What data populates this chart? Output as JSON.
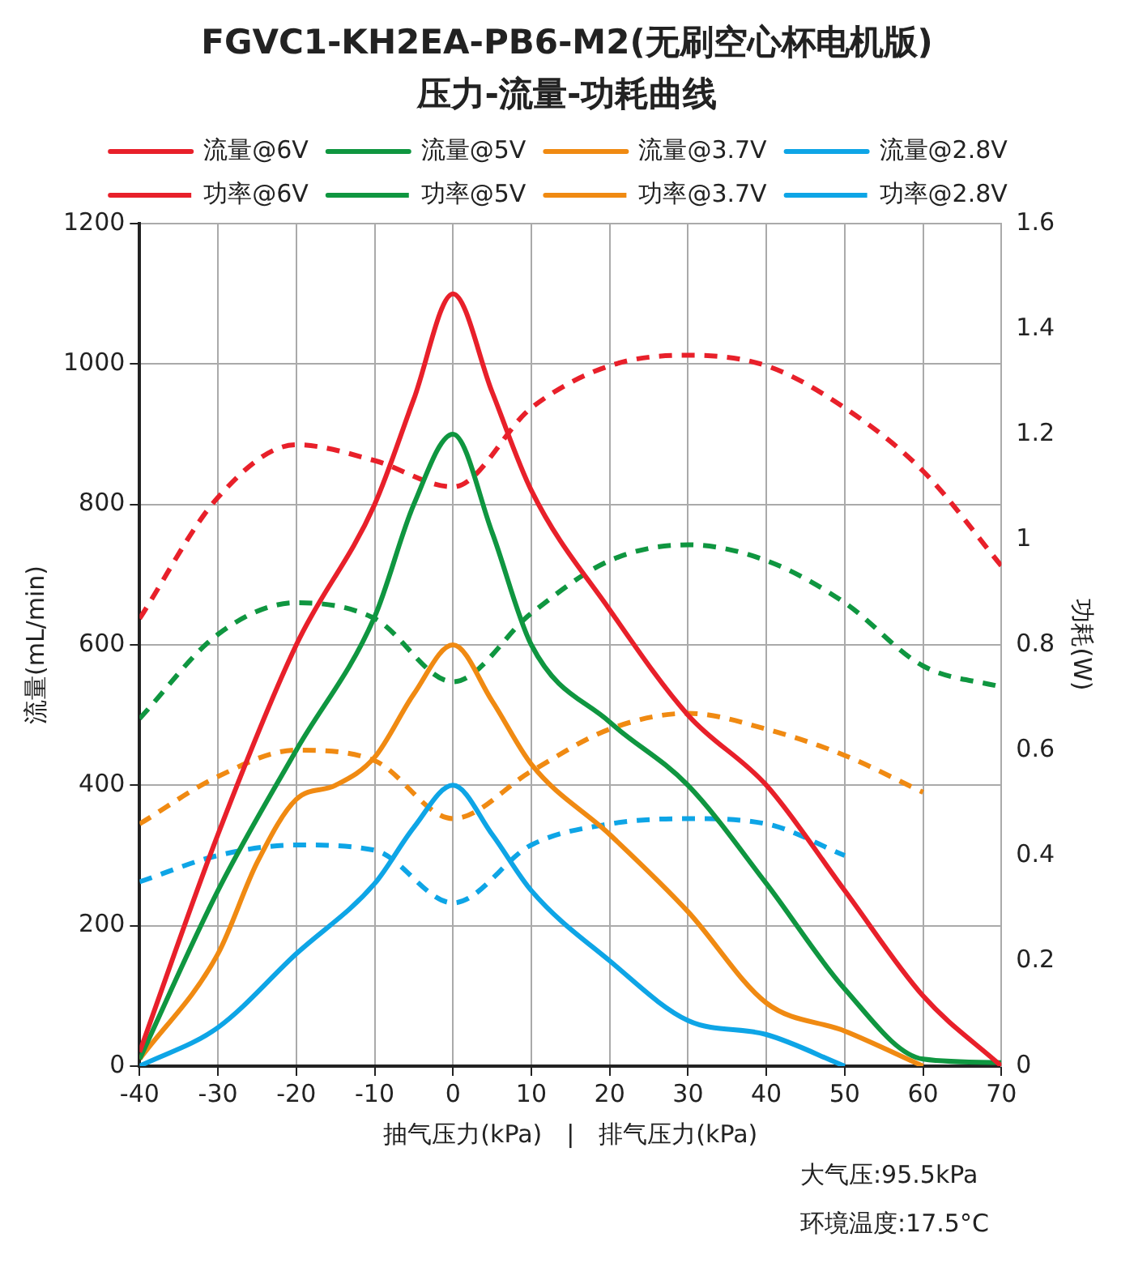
{
  "chart_data": {
    "type": "line",
    "title": "FGVC1-KH2EA-PB6-M2(无刷空心杯电机版)",
    "subtitle": "压力-流量-功耗曲线",
    "xlabel": "抽气压力(kPa)　|　排气压力(kPa)",
    "ylabel": "流量(mL/min)",
    "y2label": "功耗(W)",
    "xlim": [
      -40,
      70
    ],
    "xticks": [
      -40,
      -30,
      -20,
      -10,
      0,
      10,
      20,
      30,
      40,
      50,
      60,
      70
    ],
    "ylim": [
      0,
      1200
    ],
    "yticks": [
      0,
      200,
      400,
      600,
      800,
      1000,
      1200
    ],
    "y2lim": [
      0,
      1.6
    ],
    "y2ticks": [
      0,
      0.2,
      0.4,
      0.6,
      0.8,
      1,
      1.2,
      1.4,
      1.6
    ],
    "grid": true,
    "legend": "top",
    "marker": "none",
    "series": [
      {
        "name": "流量@6V",
        "color": "#e8202a",
        "line_style": "solid",
        "x": [
          -40,
          -30,
          -20,
          -10,
          -5,
          0,
          5,
          10,
          20,
          30,
          40,
          50,
          60,
          70
        ],
        "values": [
          20,
          330,
          600,
          800,
          950,
          1100,
          960,
          820,
          650,
          500,
          400,
          250,
          100,
          0
        ]
      },
      {
        "name": "流量@5V",
        "color": "#0f9640",
        "line_style": "solid",
        "x": [
          -40,
          -30,
          -20,
          -10,
          -5,
          0,
          5,
          10,
          20,
          30,
          40,
          50,
          60,
          70
        ],
        "values": [
          10,
          250,
          450,
          640,
          800,
          900,
          760,
          600,
          490,
          400,
          260,
          110,
          10,
          5
        ]
      },
      {
        "name": "流量@3.7V",
        "color": "#f08a12",
        "line_style": "solid",
        "x": [
          -40,
          -30,
          -25,
          -20,
          -15,
          -10,
          -5,
          0,
          5,
          10,
          20,
          30,
          40,
          50,
          60
        ],
        "values": [
          10,
          160,
          290,
          380,
          400,
          440,
          530,
          600,
          520,
          430,
          330,
          220,
          90,
          50,
          0
        ]
      },
      {
        "name": "流量@2.8V",
        "color": "#0ea5e6",
        "line_style": "solid",
        "x": [
          -40,
          -30,
          -20,
          -10,
          -5,
          0,
          5,
          10,
          20,
          30,
          40,
          50
        ],
        "values": [
          0,
          55,
          160,
          260,
          340,
          400,
          330,
          250,
          150,
          65,
          45,
          0
        ]
      },
      {
        "name": "功率@6V",
        "color": "#e8202a",
        "line_style": "dashed",
        "axis": "y2",
        "x": [
          -40,
          -30,
          -20,
          -10,
          0,
          10,
          20,
          30,
          40,
          50,
          60,
          70
        ],
        "values": [
          0.85,
          1.08,
          1.18,
          1.15,
          1.1,
          1.25,
          1.33,
          1.35,
          1.33,
          1.25,
          1.13,
          0.95
        ]
      },
      {
        "name": "功率@5V",
        "color": "#0f9640",
        "line_style": "dashed",
        "axis": "y2",
        "x": [
          -40,
          -30,
          -20,
          -10,
          0,
          10,
          20,
          30,
          40,
          50,
          60,
          70
        ],
        "values": [
          0.66,
          0.82,
          0.88,
          0.85,
          0.73,
          0.86,
          0.96,
          0.99,
          0.96,
          0.88,
          0.76,
          0.72
        ]
      },
      {
        "name": "功率@3.7V",
        "color": "#f08a12",
        "line_style": "dashed",
        "axis": "y2",
        "x": [
          -40,
          -30,
          -20,
          -10,
          0,
          10,
          20,
          30,
          40,
          50,
          60
        ],
        "values": [
          0.46,
          0.55,
          0.6,
          0.58,
          0.47,
          0.56,
          0.64,
          0.67,
          0.64,
          0.59,
          0.52
        ]
      },
      {
        "name": "功率@2.8V",
        "color": "#0ea5e6",
        "line_style": "dashed",
        "axis": "y2",
        "x": [
          -40,
          -30,
          -20,
          -10,
          0,
          10,
          20,
          30,
          40,
          50
        ],
        "values": [
          0.35,
          0.4,
          0.42,
          0.41,
          0.31,
          0.42,
          0.46,
          0.47,
          0.46,
          0.4
        ]
      }
    ],
    "annotations": [
      "大气压:95.5kPa",
      "环境温度:17.5°C"
    ]
  }
}
